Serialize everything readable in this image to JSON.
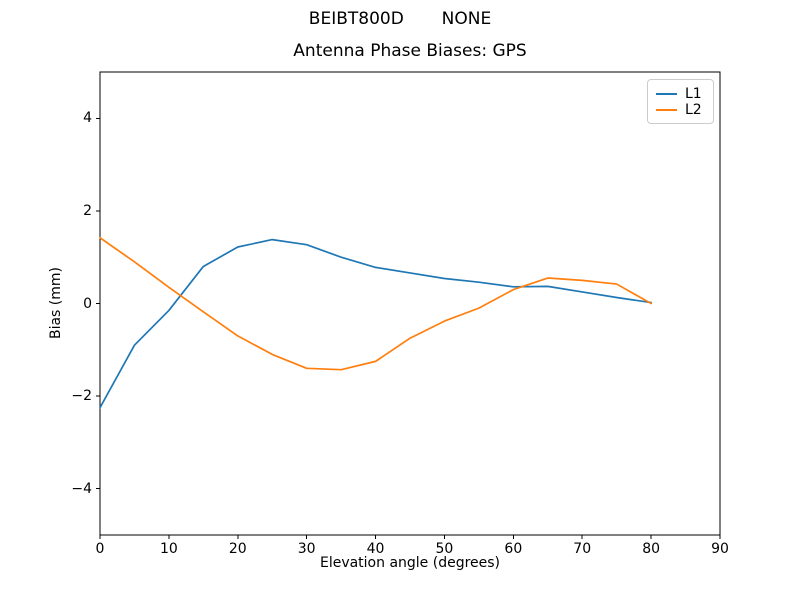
{
  "figure": {
    "suptitle": "BEIBT800D       NONE"
  },
  "chart_data": {
    "type": "line",
    "title": "Antenna Phase Biases: GPS",
    "xlabel": "Elevation angle (degrees)",
    "ylabel": "Bias (mm)",
    "xlim": [
      0,
      90
    ],
    "ylim": [
      -5,
      5
    ],
    "x_ticks": [
      0,
      10,
      20,
      30,
      40,
      50,
      60,
      70,
      80,
      90
    ],
    "y_ticks": [
      -4,
      -2,
      0,
      2,
      4
    ],
    "grid": false,
    "legend_position": "upper right",
    "x": [
      0,
      5,
      10,
      15,
      20,
      25,
      30,
      35,
      40,
      45,
      50,
      55,
      60,
      65,
      70,
      75,
      80
    ],
    "series": [
      {
        "name": "L1",
        "color": "#1f77b4",
        "values": [
          -2.25,
          -0.9,
          -0.15,
          0.8,
          1.22,
          1.38,
          1.27,
          1.0,
          0.78,
          0.66,
          0.54,
          0.46,
          0.36,
          0.37,
          0.25,
          0.13,
          0.02
        ]
      },
      {
        "name": "L2",
        "color": "#ff7f0e",
        "values": [
          1.42,
          0.9,
          0.35,
          -0.18,
          -0.7,
          -1.1,
          -1.4,
          -1.43,
          -1.25,
          -0.75,
          -0.38,
          -0.1,
          0.3,
          0.55,
          0.5,
          0.42,
          0.0
        ]
      }
    ]
  }
}
